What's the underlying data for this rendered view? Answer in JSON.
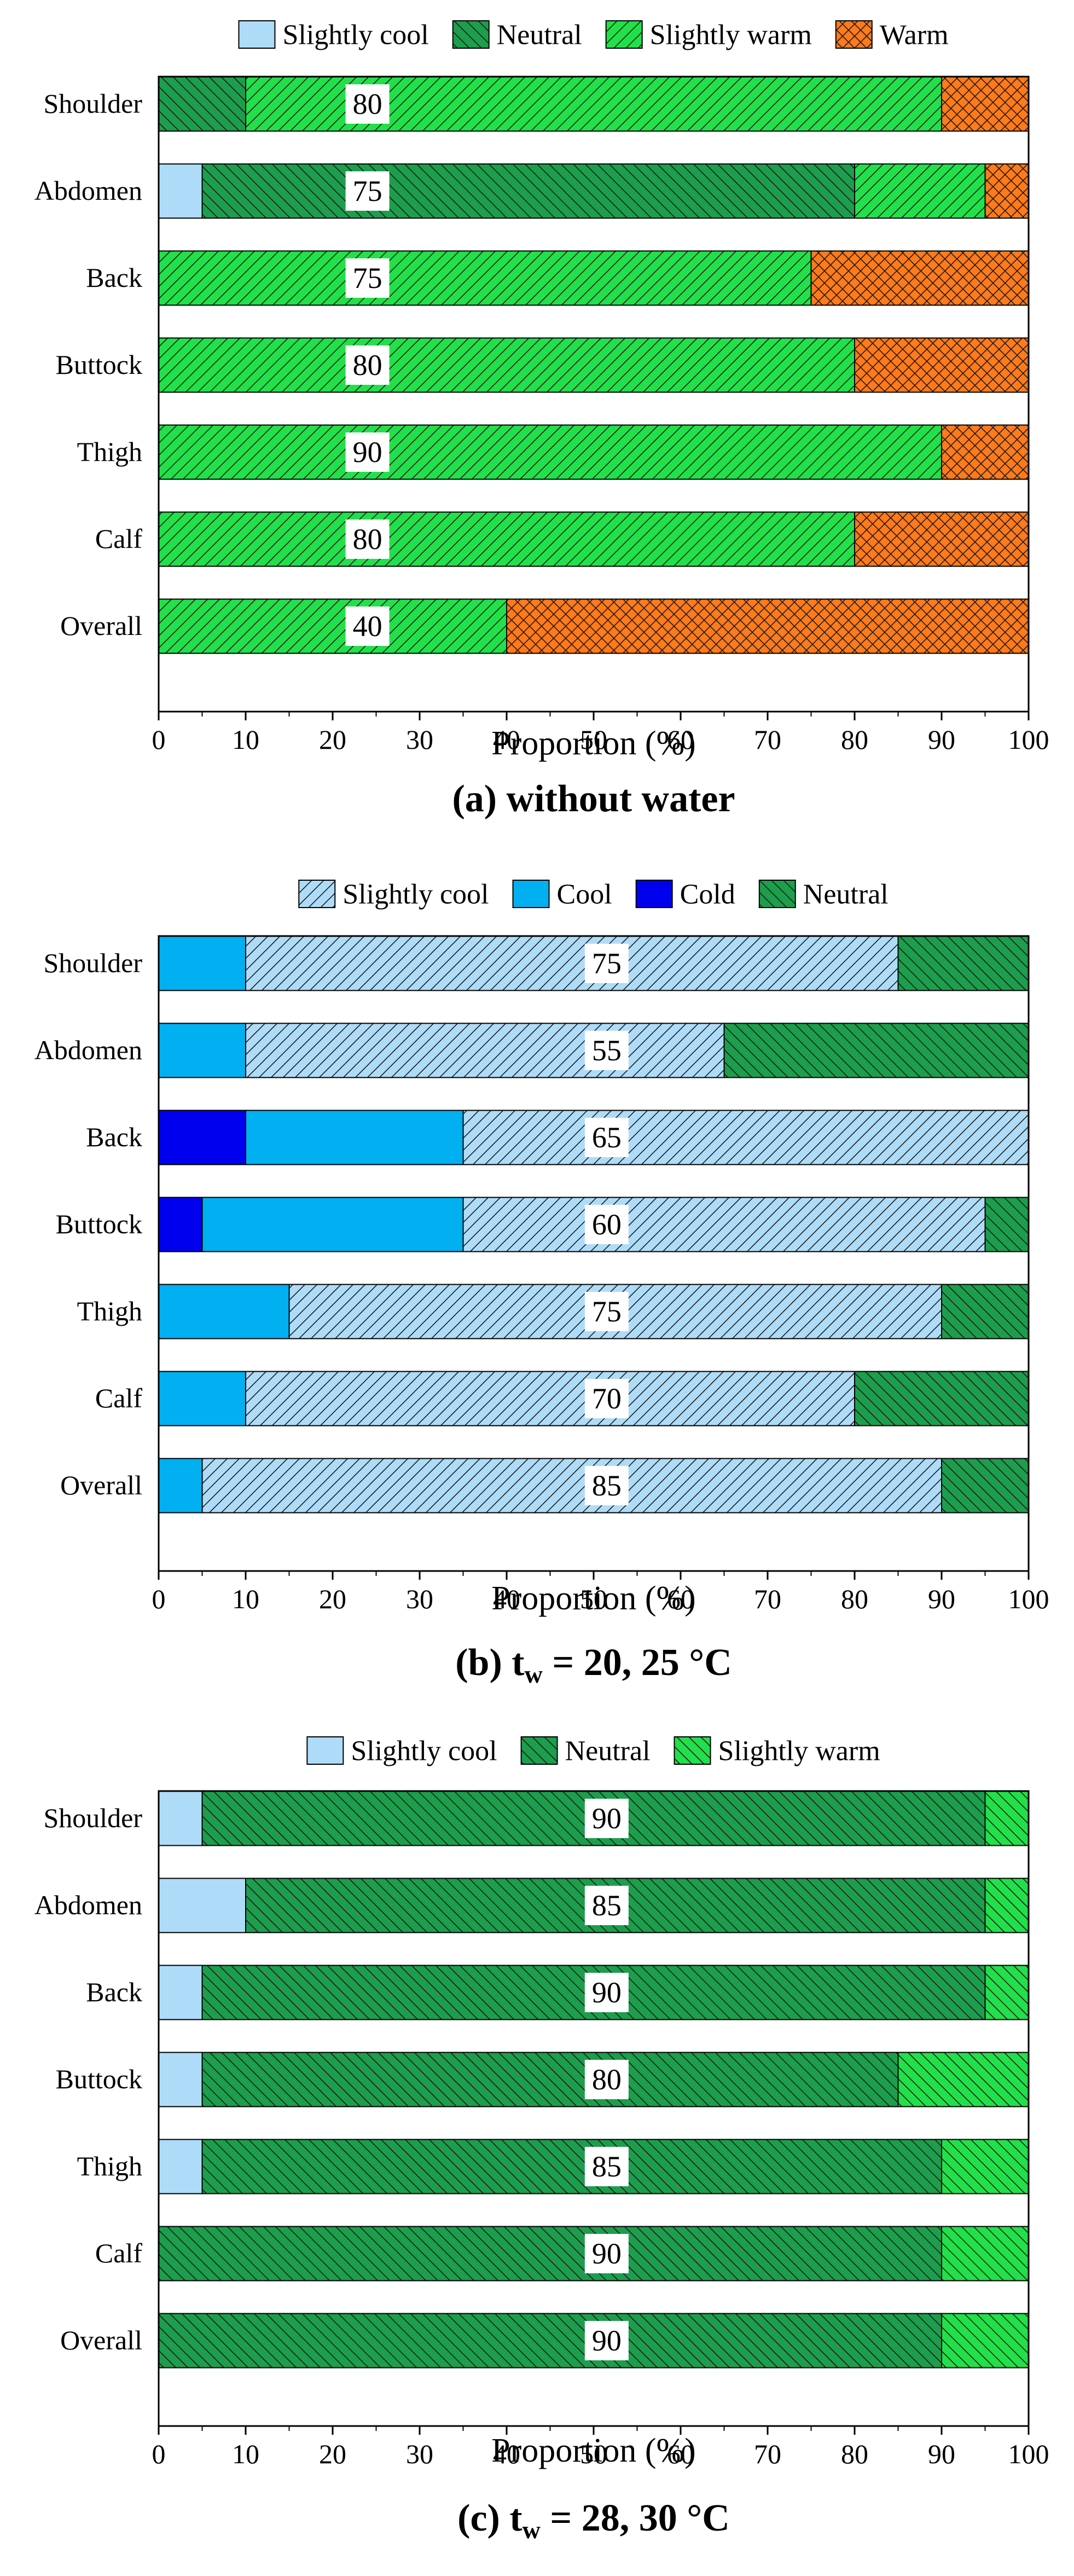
{
  "figure": {
    "colors": {
      "slightly_cool": "#aedcf8",
      "cool": "#00b0f0",
      "cold": "#0000ee",
      "neutral": "#1c9e4c",
      "slightly_warm": "#22e04a",
      "warm": "#ff7a1a",
      "hatch": "#1a1a1a",
      "axis": "#000000"
    }
  },
  "chart_data": [
    {
      "type": "bar",
      "orientation": "horizontal",
      "stacked": true,
      "caption_pre": "(a) without water",
      "caption_sub": "",
      "caption_post": "",
      "xlabel": "Proportion (%)",
      "xlim": [
        0,
        100
      ],
      "xticks": [
        0,
        10,
        20,
        30,
        40,
        50,
        60,
        70,
        80,
        90,
        100
      ],
      "categories": [
        "Shoulder",
        "Abdomen",
        "Back",
        "Buttock",
        "Thigh",
        "Calf",
        "Overall"
      ],
      "series": [
        {
          "name": "Slightly cool",
          "key": "slightly_cool",
          "pattern": "none",
          "values": [
            0,
            5,
            0,
            0,
            0,
            0,
            0
          ]
        },
        {
          "name": "Neutral",
          "key": "neutral",
          "pattern": "back",
          "values": [
            10,
            75,
            0,
            0,
            0,
            0,
            0
          ]
        },
        {
          "name": "Slightly warm",
          "key": "slightly_warm",
          "pattern": "fwd",
          "values": [
            80,
            15,
            75,
            80,
            90,
            80,
            40
          ]
        },
        {
          "name": "Warm",
          "key": "warm",
          "pattern": "cross",
          "values": [
            10,
            5,
            25,
            20,
            10,
            20,
            60
          ]
        }
      ],
      "labels": [
        {
          "text": "80",
          "x": 24
        },
        {
          "text": "75",
          "x": 24
        },
        {
          "text": "75",
          "x": 24
        },
        {
          "text": "80",
          "x": 24
        },
        {
          "text": "90",
          "x": 24
        },
        {
          "text": "80",
          "x": 24
        },
        {
          "text": "40",
          "x": 24
        }
      ]
    },
    {
      "type": "bar",
      "orientation": "horizontal",
      "stacked": true,
      "caption_pre": "(b) t",
      "caption_sub": "w",
      "caption_post": " = 20, 25 °C",
      "xlabel": "Proportion (%)",
      "xlim": [
        0,
        100
      ],
      "xticks": [
        0,
        10,
        20,
        30,
        40,
        50,
        60,
        70,
        80,
        90,
        100
      ],
      "categories": [
        "Shoulder",
        "Abdomen",
        "Back",
        "Buttock",
        "Thigh",
        "Calf",
        "Overall"
      ],
      "series": [
        {
          "name": "Cold",
          "key": "cold",
          "pattern": "none",
          "values": [
            0,
            0,
            10,
            5,
            0,
            0,
            0
          ]
        },
        {
          "name": "Cool",
          "key": "cool",
          "pattern": "none",
          "values": [
            10,
            10,
            25,
            30,
            15,
            10,
            5
          ]
        },
        {
          "name": "Slightly cool",
          "key": "slightly_cool",
          "pattern": "fwd",
          "values": [
            75,
            55,
            65,
            60,
            75,
            70,
            85
          ]
        },
        {
          "name": "Neutral",
          "key": "neutral",
          "pattern": "back",
          "values": [
            15,
            35,
            0,
            5,
            10,
            20,
            10
          ]
        }
      ],
      "legend_order": [
        "Slightly cool",
        "Cool",
        "Cold",
        "Neutral"
      ],
      "labels": [
        {
          "text": "75",
          "x": 51.5
        },
        {
          "text": "55",
          "x": 51.5
        },
        {
          "text": "65",
          "x": 51.5
        },
        {
          "text": "60",
          "x": 51.5
        },
        {
          "text": "75",
          "x": 51.5
        },
        {
          "text": "70",
          "x": 51.5
        },
        {
          "text": "85",
          "x": 51.5
        }
      ]
    },
    {
      "type": "bar",
      "orientation": "horizontal",
      "stacked": true,
      "caption_pre": "(c)  t",
      "caption_sub": "w",
      "caption_post": " = 28, 30 °C",
      "xlabel": "Proportion (%)",
      "xlim": [
        0,
        100
      ],
      "xticks": [
        0,
        10,
        20,
        30,
        40,
        50,
        60,
        70,
        80,
        90,
        100
      ],
      "categories": [
        "Shoulder",
        "Abdomen",
        "Back",
        "Buttock",
        "Thigh",
        "Calf",
        "Overall"
      ],
      "series": [
        {
          "name": "Slightly cool",
          "key": "slightly_cool",
          "pattern": "none",
          "values": [
            5,
            10,
            5,
            5,
            5,
            0,
            0
          ]
        },
        {
          "name": "Neutral",
          "key": "neutral",
          "pattern": "back",
          "values": [
            90,
            85,
            90,
            80,
            85,
            90,
            90
          ]
        },
        {
          "name": "Slightly warm",
          "key": "slightly_warm",
          "pattern": "back",
          "values": [
            5,
            5,
            5,
            15,
            10,
            10,
            10
          ]
        }
      ],
      "labels": [
        {
          "text": "90",
          "x": 51.5
        },
        {
          "text": "85",
          "x": 51.5
        },
        {
          "text": "90",
          "x": 51.5
        },
        {
          "text": "80",
          "x": 51.5
        },
        {
          "text": "85",
          "x": 51.5
        },
        {
          "text": "90",
          "x": 51.5
        },
        {
          "text": "90",
          "x": 51.5
        }
      ]
    }
  ]
}
